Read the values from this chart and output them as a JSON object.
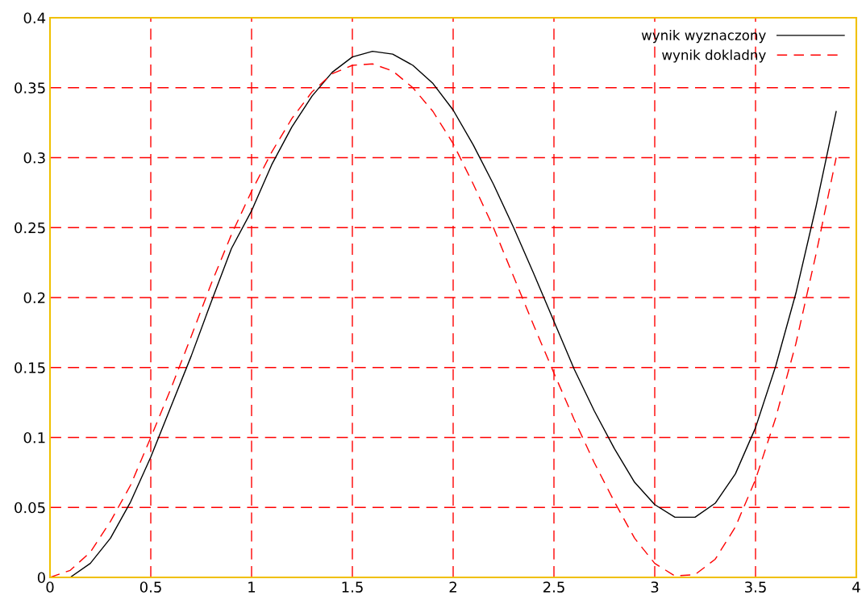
{
  "chart_data": {
    "type": "line",
    "x": [
      0,
      0.1,
      0.2,
      0.3,
      0.4,
      0.5,
      0.6,
      0.7,
      0.8,
      0.9,
      1.0,
      1.1,
      1.2,
      1.3,
      1.4,
      1.5,
      1.6,
      1.7,
      1.8,
      1.9,
      2.0,
      2.1,
      2.2,
      2.3,
      2.4,
      2.5,
      2.6,
      2.7,
      2.8,
      2.9,
      3.0,
      3.1,
      3.2,
      3.3,
      3.4,
      3.5,
      3.6,
      3.7,
      3.8,
      3.9
    ],
    "series": [
      {
        "name": "wynik wyznaczony",
        "color": "#000000",
        "line_style": "solid",
        "values": [
          0,
          0,
          0.01,
          0.028,
          0.054,
          0.086,
          0.122,
          0.158,
          0.197,
          0.235,
          0.262,
          0.295,
          0.322,
          0.344,
          0.361,
          0.372,
          0.376,
          0.374,
          0.366,
          0.353,
          0.334,
          0.309,
          0.281,
          0.25,
          0.217,
          0.183,
          0.149,
          0.119,
          0.092,
          0.068,
          0.052,
          0.043,
          0.043,
          0.053,
          0.074,
          0.107,
          0.151,
          0.203,
          0.265,
          0.333
        ]
      },
      {
        "name": "wynik dokladny",
        "color": "#ff0000",
        "line_style": "dashed",
        "values": [
          0,
          0.005,
          0.018,
          0.04,
          0.066,
          0.1,
          0.135,
          0.172,
          0.21,
          0.245,
          0.276,
          0.304,
          0.328,
          0.347,
          0.36,
          0.366,
          0.367,
          0.362,
          0.35,
          0.333,
          0.31,
          0.281,
          0.25,
          0.215,
          0.18,
          0.146,
          0.113,
          0.082,
          0.054,
          0.028,
          0.01,
          0.001,
          0.002,
          0.013,
          0.036,
          0.07,
          0.114,
          0.167,
          0.231,
          0.3
        ]
      }
    ],
    "xlim": [
      0,
      4
    ],
    "xticks": [
      0,
      0.5,
      1,
      1.5,
      2,
      2.5,
      3,
      3.5,
      4
    ],
    "ylim": [
      0,
      0.4
    ],
    "yticks": [
      0,
      0.05,
      0.1,
      0.15,
      0.2,
      0.25,
      0.3,
      0.35,
      0.4
    ],
    "grid": true,
    "legend": "top right"
  }
}
